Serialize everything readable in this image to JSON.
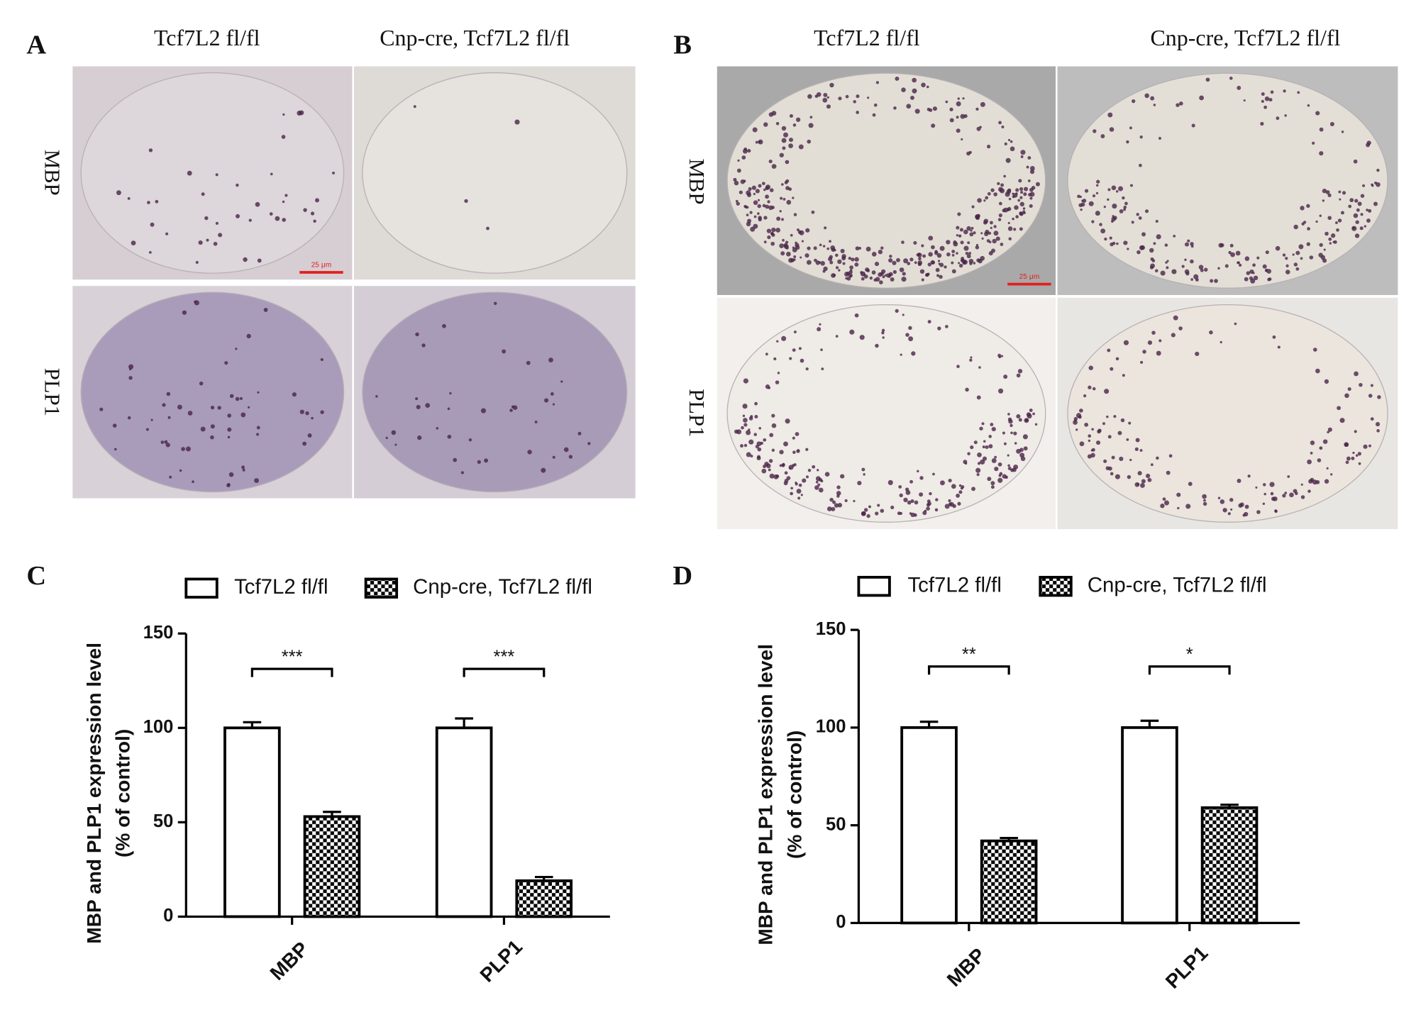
{
  "panels": [
    {
      "letter": "A",
      "columns": [
        "Tcf7L2 fl/fl",
        "Cnp-cre, Tcf7L2 fl/fl"
      ],
      "rows": [
        "MBP",
        "PLP1"
      ],
      "scale_bar": "25 μm"
    },
    {
      "letter": "B",
      "columns": [
        "Tcf7L2 fl/fl",
        "Cnp-cre, Tcf7L2 fl/fl"
      ],
      "rows": [
        "MBP",
        "PLP1"
      ],
      "scale_bar": "25 μm"
    }
  ],
  "chart_data": [
    {
      "type": "bar",
      "letter": "C",
      "categories": [
        "MBP",
        "PLP1"
      ],
      "series": [
        {
          "name": "Tcf7L2 fl/fl",
          "color": "#ffffff",
          "values": [
            100,
            100
          ],
          "errors": [
            3,
            5
          ]
        },
        {
          "name": "Cnp-cre, Tcf7L2 fl/fl",
          "color": "#000000",
          "pattern": "checker",
          "values": [
            53,
            19
          ],
          "errors": [
            2.5,
            2
          ]
        }
      ],
      "ylim": [
        0,
        150
      ],
      "yticks": [
        0,
        50,
        100,
        150
      ],
      "ylabel": [
        "MBP and PLP1 expression level",
        "(% of control)"
      ],
      "significance": [
        "***",
        "***"
      ]
    },
    {
      "type": "bar",
      "letter": "D",
      "categories": [
        "MBP",
        "PLP1"
      ],
      "series": [
        {
          "name": "Tcf7L2 fl/fl",
          "color": "#ffffff",
          "values": [
            100,
            100
          ],
          "errors": [
            3,
            3.5
          ]
        },
        {
          "name": "Cnp-cre, Tcf7L2 fl/fl",
          "color": "#000000",
          "pattern": "checker",
          "values": [
            42,
            59
          ],
          "errors": [
            1.5,
            1.5
          ]
        }
      ],
      "ylim": [
        0,
        150
      ],
      "yticks": [
        0,
        50,
        100,
        150
      ],
      "ylabel": [
        "MBP and PLP1 expression level",
        "(% of control)"
      ],
      "significance": [
        "**",
        "*"
      ]
    }
  ]
}
